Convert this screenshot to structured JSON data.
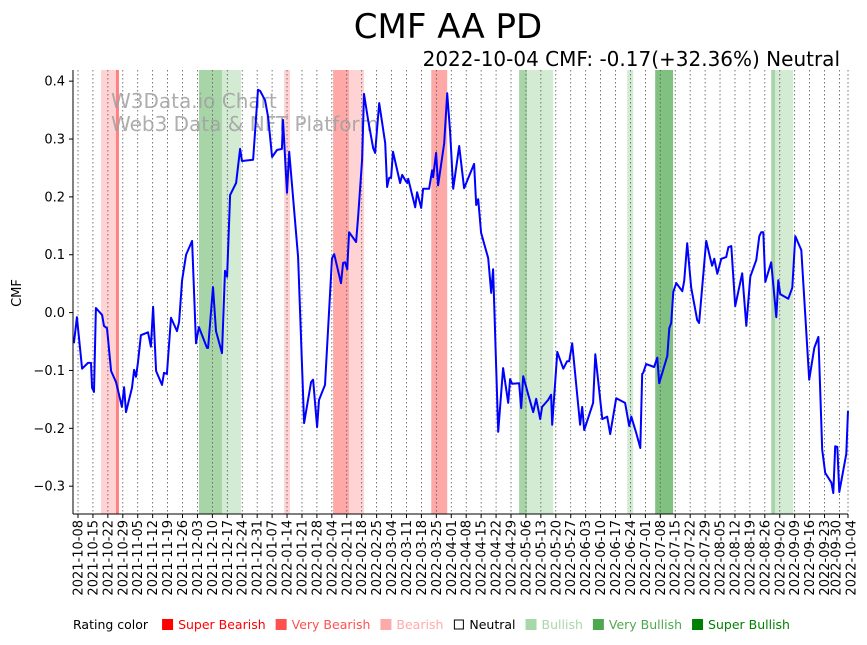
{
  "chart_data": {
    "type": "line",
    "title": "CMF AA PD",
    "subtitle": "2022-10-04 CMF: -0.17(+32.36%) Neutral",
    "ylabel": "CMF",
    "xlabel": "",
    "ylim": [
      -0.35,
      0.42
    ],
    "yticks": [
      "0.4",
      "0.3",
      "0.2",
      "0.1",
      "0.0",
      "−0.1",
      "−0.2",
      "−0.3"
    ],
    "ytick_values": [
      0.4,
      0.3,
      0.2,
      0.1,
      0.0,
      -0.1,
      -0.2,
      -0.3
    ],
    "x_unit": "days since 2021-10-08",
    "xlim": [
      -2.3,
      361
    ],
    "xticks": [
      "2021-10-08",
      "2021-10-15",
      "2021-10-22",
      "2021-10-29",
      "2021-11-05",
      "2021-11-12",
      "2021-11-19",
      "2021-11-26",
      "2021-12-03",
      "2021-12-10",
      "2021-12-17",
      "2021-12-24",
      "2021-12-31",
      "2022-01-07",
      "2022-01-14",
      "2022-01-21",
      "2022-01-28",
      "2022-02-04",
      "2022-02-11",
      "2022-02-18",
      "2022-02-25",
      "2022-03-04",
      "2022-03-11",
      "2022-03-18",
      "2022-03-25",
      "2022-04-01",
      "2022-04-08",
      "2022-04-15",
      "2022-04-22",
      "2022-04-29",
      "2022-05-06",
      "2022-05-13",
      "2022-05-20",
      "2022-05-27",
      "2022-06-03",
      "2022-06-10",
      "2022-06-17",
      "2022-06-24",
      "2022-07-01",
      "2022-07-08",
      "2022-07-15",
      "2022-07-22",
      "2022-07-29",
      "2022-08-05",
      "2022-08-12",
      "2022-08-19",
      "2022-08-26",
      "2022-09-02",
      "2022-09-09",
      "2022-09-16",
      "2022-09-23",
      "2022-09-30",
      "2022-10-04"
    ],
    "xtick_days": [
      0,
      7,
      14,
      21,
      28,
      35,
      42,
      49,
      56,
      63,
      70,
      77,
      84,
      91,
      98,
      105,
      112,
      119,
      126,
      133,
      140,
      147,
      154,
      161,
      168,
      175,
      182,
      189,
      196,
      203,
      210,
      217,
      224,
      231,
      238,
      245,
      252,
      259,
      266,
      273,
      280,
      287,
      294,
      301,
      308,
      315,
      322,
      329,
      336,
      343,
      350,
      357,
      361
    ],
    "grid": "vertical dotted at x ticks",
    "series": [
      {
        "name": "CMF",
        "color": "#0000ff",
        "points": [
          [
            -1.9,
            -0.053
          ],
          [
            -0.5,
            -0.008
          ],
          [
            1.9,
            -0.097
          ],
          [
            4.7,
            -0.087
          ],
          [
            6.1,
            -0.087
          ],
          [
            6.6,
            -0.13
          ],
          [
            7.5,
            -0.137
          ],
          [
            8.4,
            0.008
          ],
          [
            11.3,
            -0.004
          ],
          [
            12.2,
            -0.023
          ],
          [
            13.6,
            -0.027
          ],
          [
            15.5,
            -0.101
          ],
          [
            17.8,
            -0.12
          ],
          [
            18.8,
            -0.135
          ],
          [
            20.6,
            -0.163
          ],
          [
            21.6,
            -0.129
          ],
          [
            22.5,
            -0.172
          ],
          [
            25.3,
            -0.13
          ],
          [
            26.3,
            -0.099
          ],
          [
            27.2,
            -0.111
          ],
          [
            28.1,
            -0.087
          ],
          [
            29.5,
            -0.039
          ],
          [
            32.8,
            -0.034
          ],
          [
            34.2,
            -0.059
          ],
          [
            35.2,
            0.01
          ],
          [
            36.6,
            -0.101
          ],
          [
            39.4,
            -0.125
          ],
          [
            40.3,
            -0.104
          ],
          [
            41.7,
            -0.106
          ],
          [
            43.6,
            -0.009
          ],
          [
            46.4,
            -0.032
          ],
          [
            47.4,
            -0.016
          ],
          [
            48.8,
            0.056
          ],
          [
            50.7,
            0.1
          ],
          [
            53.5,
            0.124
          ],
          [
            55.3,
            -0.053
          ],
          [
            56.7,
            -0.025
          ],
          [
            60.5,
            -0.061
          ],
          [
            61.0,
            -0.061
          ],
          [
            63.3,
            0.044
          ],
          [
            64.7,
            -0.032
          ],
          [
            67.5,
            -0.07
          ],
          [
            68.9,
            0.072
          ],
          [
            69.9,
            0.062
          ],
          [
            71.3,
            0.203
          ],
          [
            74.1,
            0.224
          ],
          [
            76.0,
            0.283
          ],
          [
            76.9,
            0.262
          ],
          [
            82.1,
            0.264
          ],
          [
            84.4,
            0.385
          ],
          [
            85.4,
            0.383
          ],
          [
            87.7,
            0.367
          ],
          [
            89.1,
            0.338
          ],
          [
            91.0,
            0.269
          ],
          [
            93.3,
            0.281
          ],
          [
            95.6,
            0.283
          ],
          [
            96.1,
            0.333
          ],
          [
            98.0,
            0.207
          ],
          [
            99.0,
            0.278
          ],
          [
            103.2,
            0.096
          ],
          [
            106.0,
            -0.191
          ],
          [
            109.3,
            -0.12
          ],
          [
            110.2,
            -0.116
          ],
          [
            112.1,
            -0.198
          ],
          [
            113.0,
            -0.151
          ],
          [
            115.8,
            -0.125
          ],
          [
            119.1,
            0.094
          ],
          [
            120.1,
            0.101
          ],
          [
            123.3,
            0.051
          ],
          [
            124.3,
            0.086
          ],
          [
            125.2,
            0.087
          ],
          [
            126.2,
            0.075
          ],
          [
            127.1,
            0.139
          ],
          [
            130.4,
            0.122
          ],
          [
            131.3,
            0.165
          ],
          [
            133.2,
            0.264
          ],
          [
            134.1,
            0.378
          ],
          [
            136.0,
            0.333
          ],
          [
            138.4,
            0.284
          ],
          [
            139.3,
            0.276
          ],
          [
            141.2,
            0.362
          ],
          [
            144.0,
            0.293
          ],
          [
            144.9,
            0.217
          ],
          [
            145.9,
            0.233
          ],
          [
            146.8,
            0.233
          ],
          [
            147.7,
            0.278
          ],
          [
            151.0,
            0.224
          ],
          [
            152.0,
            0.238
          ],
          [
            153.4,
            0.229
          ],
          [
            154.3,
            0.224
          ],
          [
            154.8,
            0.231
          ],
          [
            158.1,
            0.182
          ],
          [
            159.0,
            0.208
          ],
          [
            160.9,
            0.181
          ],
          [
            161.8,
            0.214
          ],
          [
            164.6,
            0.214
          ],
          [
            166.0,
            0.246
          ],
          [
            166.5,
            0.234
          ],
          [
            167.9,
            0.276
          ],
          [
            168.8,
            0.22
          ],
          [
            171.7,
            0.293
          ],
          [
            173.1,
            0.379
          ],
          [
            174.5,
            0.31
          ],
          [
            175.9,
            0.214
          ],
          [
            178.7,
            0.288
          ],
          [
            181.0,
            0.215
          ],
          [
            185.7,
            0.257
          ],
          [
            186.7,
            0.186
          ],
          [
            187.6,
            0.196
          ],
          [
            189.0,
            0.138
          ],
          [
            192.3,
            0.094
          ],
          [
            193.7,
            0.034
          ],
          [
            194.6,
            0.075
          ],
          [
            197.0,
            -0.206
          ],
          [
            199.3,
            -0.096
          ],
          [
            201.7,
            -0.156
          ],
          [
            202.6,
            -0.115
          ],
          [
            203.5,
            -0.123
          ],
          [
            206.8,
            -0.122
          ],
          [
            207.8,
            -0.165
          ],
          [
            208.7,
            -0.11
          ],
          [
            211.1,
            -0.142
          ],
          [
            213.4,
            -0.172
          ],
          [
            214.8,
            -0.149
          ],
          [
            216.7,
            -0.184
          ],
          [
            217.6,
            -0.163
          ],
          [
            220.4,
            -0.151
          ],
          [
            221.8,
            -0.142
          ],
          [
            222.3,
            -0.194
          ],
          [
            224.7,
            -0.068
          ],
          [
            227.5,
            -0.097
          ],
          [
            229.3,
            -0.084
          ],
          [
            230.3,
            -0.084
          ],
          [
            231.7,
            -0.053
          ],
          [
            235.4,
            -0.194
          ],
          [
            236.4,
            -0.163
          ],
          [
            237.3,
            -0.203
          ],
          [
            241.5,
            -0.156
          ],
          [
            242.5,
            -0.072
          ],
          [
            245.8,
            -0.184
          ],
          [
            248.1,
            -0.18
          ],
          [
            249.5,
            -0.21
          ],
          [
            252.3,
            -0.148
          ],
          [
            256.5,
            -0.156
          ],
          [
            258.4,
            -0.196
          ],
          [
            259.4,
            -0.18
          ],
          [
            261.7,
            -0.208
          ],
          [
            263.6,
            -0.234
          ],
          [
            264.5,
            -0.106
          ],
          [
            265.0,
            -0.104
          ],
          [
            266.4,
            -0.089
          ],
          [
            270.1,
            -0.094
          ],
          [
            271.6,
            -0.078
          ],
          [
            272.5,
            -0.122
          ],
          [
            276.3,
            -0.075
          ],
          [
            277.2,
            -0.027
          ],
          [
            278.1,
            -0.018
          ],
          [
            279.1,
            0.036
          ],
          [
            280.5,
            0.051
          ],
          [
            283.3,
            0.037
          ],
          [
            284.2,
            0.055
          ],
          [
            285.6,
            0.12
          ],
          [
            287.5,
            0.043
          ],
          [
            290.3,
            -0.013
          ],
          [
            291.2,
            -0.018
          ],
          [
            294.5,
            0.124
          ],
          [
            296.4,
            0.094
          ],
          [
            297.3,
            0.081
          ],
          [
            298.3,
            0.093
          ],
          [
            299.7,
            0.067
          ],
          [
            301.6,
            0.093
          ],
          [
            303.9,
            0.096
          ],
          [
            304.9,
            0.113
          ],
          [
            306.3,
            0.115
          ],
          [
            308.1,
            0.011
          ],
          [
            311.4,
            0.068
          ],
          [
            313.3,
            -0.023
          ],
          [
            315.2,
            0.062
          ],
          [
            318.0,
            0.091
          ],
          [
            319.4,
            0.132
          ],
          [
            320.3,
            0.139
          ],
          [
            321.3,
            0.139
          ],
          [
            322.2,
            0.053
          ],
          [
            325.0,
            0.087
          ],
          [
            327.4,
            -0.008
          ],
          [
            328.3,
            0.056
          ],
          [
            329.2,
            0.032
          ],
          [
            333.0,
            0.024
          ],
          [
            334.9,
            0.043
          ],
          [
            336.3,
            0.132
          ],
          [
            339.1,
            0.108
          ],
          [
            342.8,
            -0.116
          ],
          [
            345.2,
            -0.061
          ],
          [
            347.1,
            -0.042
          ],
          [
            348.9,
            -0.237
          ],
          [
            350.3,
            -0.277
          ],
          [
            353.2,
            -0.294
          ],
          [
            354.1,
            -0.312
          ],
          [
            355.0,
            -0.231
          ],
          [
            356.0,
            -0.232
          ],
          [
            356.9,
            -0.31
          ],
          [
            360.2,
            -0.244
          ],
          [
            361.0,
            -0.17
          ]
        ]
      }
    ],
    "rating_bands": [
      {
        "start": 10.8,
        "end": 17.8,
        "rating": "Bearish"
      },
      {
        "start": 17.8,
        "end": 19.2,
        "rating": "Super Bearish"
      },
      {
        "start": 56.7,
        "end": 67.5,
        "rating": "Very Bullish"
      },
      {
        "start": 67.5,
        "end": 76.4,
        "rating": "Bullish"
      },
      {
        "start": 96.6,
        "end": 99.4,
        "rating": "Bearish"
      },
      {
        "start": 119.6,
        "end": 127.1,
        "rating": "Very Bearish"
      },
      {
        "start": 127.1,
        "end": 134.1,
        "rating": "Bearish"
      },
      {
        "start": 165.6,
        "end": 173.1,
        "rating": "Very Bearish"
      },
      {
        "start": 206.8,
        "end": 210.6,
        "rating": "Very Bullish"
      },
      {
        "start": 210.6,
        "end": 222.8,
        "rating": "Bullish"
      },
      {
        "start": 257.5,
        "end": 260.3,
        "rating": "Bullish"
      },
      {
        "start": 270.6,
        "end": 279.0,
        "rating": "Super Bullish"
      },
      {
        "start": 325.0,
        "end": 326.9,
        "rating": "Very Bullish"
      },
      {
        "start": 326.9,
        "end": 335.3,
        "rating": "Bullish"
      }
    ],
    "band_colors": {
      "Super Bearish": "#ff8080",
      "Very Bearish": "#ffa8a8",
      "Bearish": "#ffd3d3",
      "Bullish": "#d3ead3",
      "Very Bullish": "#a8d5a8",
      "Super Bullish": "#80c080"
    },
    "legend": {
      "title": "Rating color",
      "placement": "bottom",
      "items": [
        {
          "label": "Super Bearish",
          "color": "#ff0000"
        },
        {
          "label": "Very Bearish",
          "color": "#ff5050"
        },
        {
          "label": "Bearish",
          "color": "#ffaaaa"
        },
        {
          "label": "Neutral",
          "color": "#000000"
        },
        {
          "label": "Bullish",
          "color": "#a8d8a8"
        },
        {
          "label": "Very Bullish",
          "color": "#4fa84f"
        },
        {
          "label": "Super Bullish",
          "color": "#008000"
        }
      ]
    },
    "watermark": [
      "W3Data.io Chart",
      "Web3 Data & NFT Platform"
    ]
  }
}
